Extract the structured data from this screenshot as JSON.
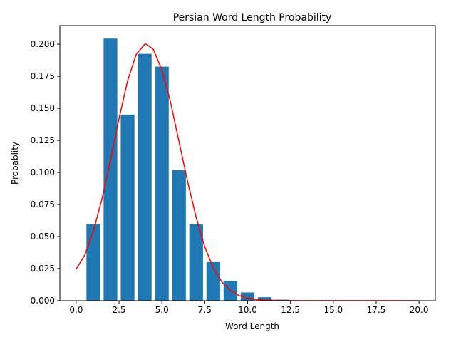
{
  "chart_data": {
    "type": "bar",
    "title": "Persian Word Length Probability",
    "xlabel": "Word Length",
    "ylabel": "Probablity",
    "xlim": [
      -0.95,
      20.95
    ],
    "ylim": [
      0,
      0.2145
    ],
    "xticks": [
      "0.0",
      "2.5",
      "5.0",
      "7.5",
      "10.0",
      "12.5",
      "15.0",
      "17.5",
      "20.0"
    ],
    "yticks": [
      "0.000",
      "0.025",
      "0.050",
      "0.075",
      "0.100",
      "0.125",
      "0.150",
      "0.175",
      "0.200"
    ],
    "bar_color": "#1f77b4",
    "curve_color": "#ff0000",
    "grid": false,
    "bars": {
      "x": [
        1,
        2,
        3,
        4,
        5,
        6,
        7,
        8,
        9,
        10,
        11,
        12,
        13,
        14,
        15,
        16,
        17,
        18,
        19,
        20
      ],
      "values": [
        0.0596,
        0.2044,
        0.1451,
        0.1925,
        0.1825,
        0.1017,
        0.0596,
        0.0301,
        0.0153,
        0.0064,
        0.0027,
        0.0008,
        0.0003,
        0.0001,
        0.0001,
        0.0,
        0.0,
        0.0,
        0.0,
        0.0
      ]
    },
    "curve": {
      "x": [
        0.0,
        0.5,
        1.0,
        1.5,
        2.0,
        2.5,
        3.0,
        3.5,
        4.0,
        4.1,
        4.5,
        5.0,
        5.5,
        6.0,
        6.5,
        7.0,
        7.5,
        8.0,
        8.5,
        9.0,
        9.5,
        10.0,
        10.5,
        11.0,
        11.5,
        12.0,
        12.5,
        13.0,
        14.0,
        15.0,
        16.0,
        17.0,
        18.0,
        19.0,
        20.0
      ],
      "y": [
        0.0245,
        0.0355,
        0.054,
        0.079,
        0.1095,
        0.142,
        0.1715,
        0.192,
        0.2,
        0.2,
        0.196,
        0.18,
        0.155,
        0.124,
        0.093,
        0.065,
        0.042,
        0.0255,
        0.0145,
        0.0078,
        0.004,
        0.002,
        0.001,
        0.0005,
        0.0003,
        0.0001,
        5e-05,
        0.0,
        0.0,
        0.0,
        0.0,
        0.0,
        0.0,
        0.0,
        0.0
      ]
    }
  }
}
